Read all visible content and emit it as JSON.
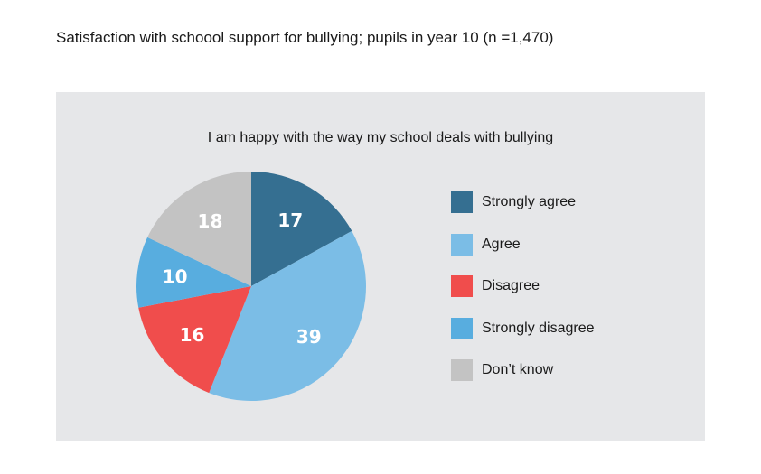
{
  "page": {
    "title": "Satisfaction with schoool support for bullying; pupils in year 10 (n =1,470)"
  },
  "chart_data": {
    "type": "pie",
    "title": "I am happy with the way my school deals with bullying",
    "categories": [
      "Strongly agree",
      "Agree",
      "Disagree",
      "Strongly disagree",
      "Don’t know"
    ],
    "values": [
      17,
      39,
      16,
      10,
      18
    ],
    "colors": [
      "#356f91",
      "#7bbde6",
      "#f04d4c",
      "#58addf",
      "#c3c3c3"
    ],
    "start_angle_deg": 0,
    "direction": "clockwise",
    "legend_position": "right",
    "data_labels": [
      "17",
      "39",
      "16",
      "10",
      "18"
    ]
  }
}
